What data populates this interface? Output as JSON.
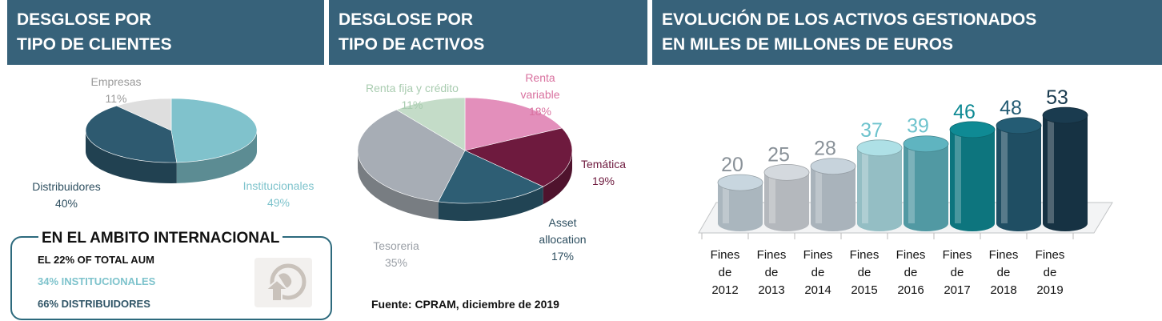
{
  "headers": [
    {
      "line1": "DESGLOSE POR",
      "line2": "TIPO DE CLIENTES"
    },
    {
      "line1": "DESGLOSE POR",
      "line2": "TIPO DE ACTIVOS"
    },
    {
      "line1": "EVOLUCIÓN DE LOS ACTIVOS GESTIONADOS",
      "line2": "EN MILES DE MILLONES DE EUROS"
    }
  ],
  "international": {
    "title": "EN EL AMBITO INTERNACIONAL",
    "line1": "EL 22% OF TOTAL AUM",
    "line2": "34% INSTITUCIONALES",
    "line3": "66% DISTRIBUIDORES",
    "colors": {
      "line2": "#7ec3cc",
      "line3": "#2f5466"
    },
    "icon": "globe-arrow-icon"
  },
  "source": "Fuente: CPRAM, diciembre de 2019",
  "chart_data": [
    {
      "type": "pie",
      "slices": [
        {
          "label": "Institucionales",
          "pct_text": "49%",
          "value": 49,
          "color": "#80c2cc"
        },
        {
          "label": "Distribuidores",
          "pct_text": "40%",
          "value": 40,
          "color": "#2e5a70"
        },
        {
          "label": "Empresas",
          "pct_text": "11%",
          "value": 11,
          "color": "#dedede"
        }
      ]
    },
    {
      "type": "pie",
      "slices": [
        {
          "label": "Renta variable",
          "label_lines": [
            "Renta",
            "variable"
          ],
          "pct_text": "18%",
          "value": 18,
          "color": "#e38fbb"
        },
        {
          "label": "Temática",
          "label_lines": [
            "Temática"
          ],
          "pct_text": "19%",
          "value": 19,
          "color": "#6e1a3e"
        },
        {
          "label": "Asset allocation",
          "label_lines": [
            "Asset",
            "allocation"
          ],
          "pct_text": "17%",
          "value": 17,
          "color": "#2e5e74"
        },
        {
          "label": "Tesoreria",
          "label_lines": [
            "Tesoreria"
          ],
          "pct_text": "35%",
          "value": 35,
          "color": "#a7adb5"
        },
        {
          "label": "Renta fija y crédito",
          "label_lines": [
            "Renta fija y crédito"
          ],
          "pct_text": "11%",
          "value": 11,
          "color": "#c4dcc8"
        }
      ]
    },
    {
      "type": "bar",
      "categories": [
        "Fines de 2012",
        "Fines de 2013",
        "Fines de 2014",
        "Fines de 2015",
        "Fines de 2016",
        "Fines de 2017",
        "Fines de 2018",
        "Fines de 2019"
      ],
      "category_lines": [
        [
          "Fines",
          "de",
          "2012"
        ],
        [
          "Fines",
          "de",
          "2013"
        ],
        [
          "Fines",
          "de",
          "2014"
        ],
        [
          "Fines",
          "de",
          "2015"
        ],
        [
          "Fines",
          "de",
          "2016"
        ],
        [
          "Fines",
          "de",
          "2017"
        ],
        [
          "Fines",
          "de",
          "2018"
        ],
        [
          "Fines",
          "de",
          "2019"
        ]
      ],
      "values": [
        20,
        25,
        28,
        37,
        39,
        46,
        48,
        53
      ],
      "bar_colors": [
        "#c8d6df",
        "#d4d9de",
        "#c7d3dc",
        "#aee0e6",
        "#5fb4c0",
        "#0f8a94",
        "#245c74",
        "#1a3b4f"
      ],
      "label_colors": [
        "#8a9299",
        "#8a9299",
        "#8a9299",
        "#6ec3cd",
        "#6ec3cd",
        "#0f8a94",
        "#245c74",
        "#1a3b4f"
      ],
      "ylim": [
        0,
        55
      ]
    }
  ]
}
